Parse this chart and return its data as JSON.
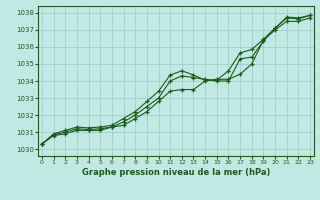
{
  "title": "Graphe pression niveau de la mer (hPa)",
  "bg_color": "#c2e8e4",
  "grid_color": "#9ecfcc",
  "line_color": "#1a5c1a",
  "xlim": [
    -0.3,
    23.3
  ],
  "ylim": [
    1029.6,
    1038.4
  ],
  "yticks": [
    1030,
    1031,
    1032,
    1033,
    1034,
    1035,
    1036,
    1037,
    1038
  ],
  "xticks": [
    0,
    1,
    2,
    3,
    4,
    5,
    6,
    7,
    8,
    9,
    10,
    11,
    12,
    13,
    14,
    15,
    16,
    17,
    18,
    19,
    20,
    21,
    22,
    23
  ],
  "line1": [
    1030.3,
    1030.8,
    1030.9,
    1031.1,
    1031.1,
    1031.1,
    1031.3,
    1031.4,
    1031.8,
    1032.2,
    1032.8,
    1033.4,
    1033.5,
    1033.5,
    1034.0,
    1034.1,
    1034.1,
    1034.4,
    1035.0,
    1036.4,
    1037.0,
    1037.5,
    1037.5,
    1037.7
  ],
  "line2": [
    1030.3,
    1030.85,
    1031.0,
    1031.2,
    1031.15,
    1031.2,
    1031.3,
    1031.6,
    1032.0,
    1032.5,
    1033.0,
    1034.0,
    1034.3,
    1034.2,
    1034.1,
    1034.0,
    1034.0,
    1035.3,
    1035.4,
    1036.35,
    1037.1,
    1037.75,
    1037.7,
    1037.85
  ],
  "line3": [
    1030.3,
    1030.9,
    1031.1,
    1031.3,
    1031.25,
    1031.3,
    1031.4,
    1031.8,
    1032.2,
    1032.8,
    1033.4,
    1034.35,
    1034.6,
    1034.35,
    1034.05,
    1034.05,
    1034.6,
    1035.65,
    1035.85,
    1036.45,
    1037.1,
    1037.7,
    1037.65,
    1037.85
  ]
}
